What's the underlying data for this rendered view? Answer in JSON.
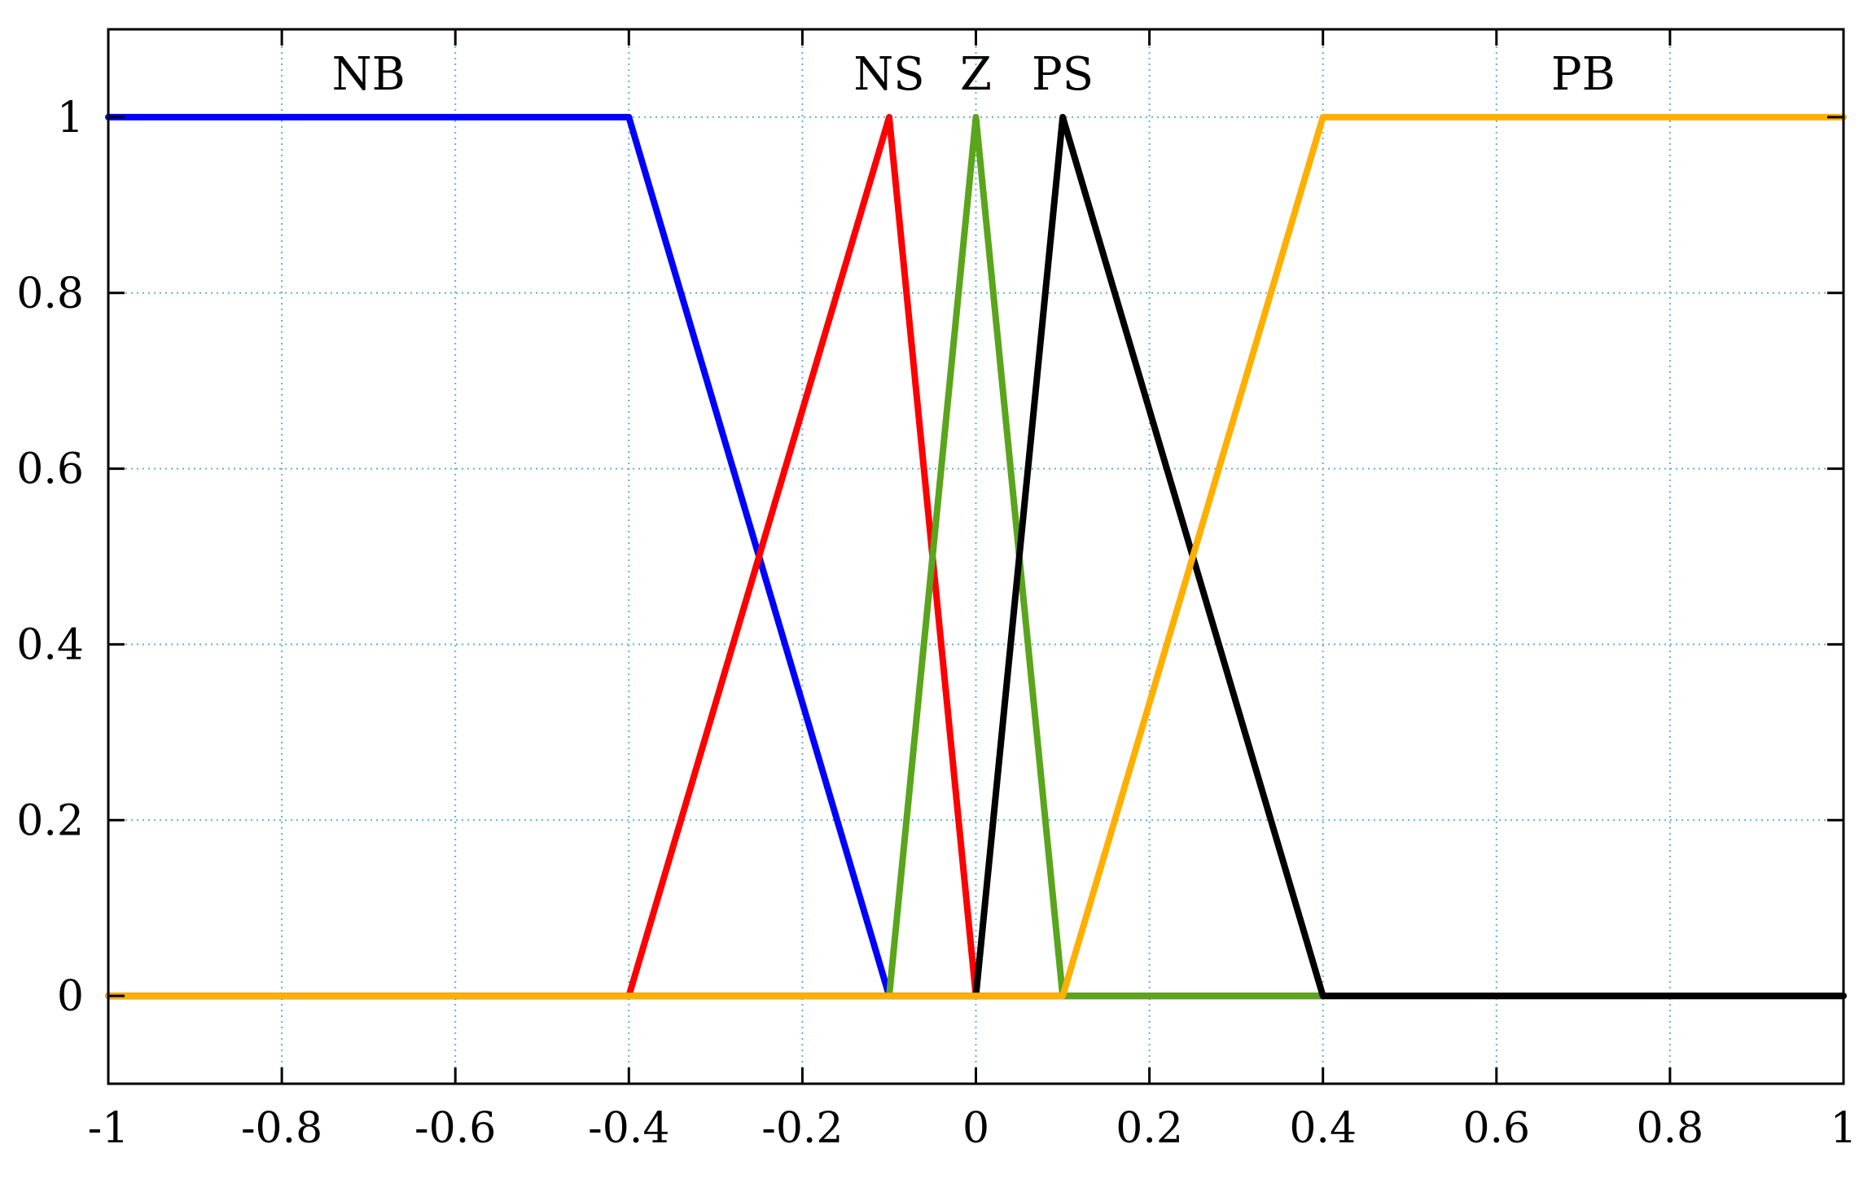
{
  "chart_data": {
    "type": "line",
    "title": "",
    "xlabel": "",
    "ylabel": "",
    "xlim": [
      -1,
      1
    ],
    "ylim": [
      -0.1,
      1.1
    ],
    "xticks": [
      -1,
      -0.8,
      -0.6,
      -0.4,
      -0.2,
      0,
      0.2,
      0.4,
      0.6,
      0.8,
      1
    ],
    "xtick_labels": [
      "-1",
      "-0.8",
      "-0.6",
      "-0.4",
      "-0.2",
      "0",
      "0.2",
      "0.4",
      "0.6",
      "0.8",
      "1"
    ],
    "yticks": [
      0,
      0.2,
      0.4,
      0.6,
      0.8,
      1
    ],
    "ytick_labels": [
      "0",
      "0.2",
      "0.4",
      "0.6",
      "0.8",
      "1"
    ],
    "grid": true,
    "grid_color": "#5fb0e0",
    "series": [
      {
        "name": "NB",
        "color": "#0000ff",
        "x": [
          -1,
          -0.4,
          -0.1,
          1
        ],
        "y": [
          1,
          1,
          0,
          0
        ]
      },
      {
        "name": "NS",
        "color": "#ff0000",
        "x": [
          -1,
          -0.4,
          -0.1,
          0,
          1
        ],
        "y": [
          0,
          0,
          1,
          0,
          0
        ]
      },
      {
        "name": "Z",
        "color": "#5aa51c",
        "x": [
          -1,
          -0.1,
          0,
          0.1,
          1
        ],
        "y": [
          0,
          0,
          1,
          0,
          0
        ]
      },
      {
        "name": "PS",
        "color": "#000000",
        "x": [
          -1,
          0,
          0.1,
          0.4,
          1
        ],
        "y": [
          0,
          0,
          1,
          0,
          0
        ]
      },
      {
        "name": "PB",
        "color": "#ffaf00",
        "x": [
          -1,
          0.1,
          0.4,
          1
        ],
        "y": [
          0,
          0,
          1,
          1
        ]
      }
    ],
    "annotations": [
      {
        "text": "NB",
        "x": -0.7,
        "y": 1.05
      },
      {
        "text": "NS",
        "x": -0.1,
        "y": 1.05
      },
      {
        "text": "Z",
        "x": 0,
        "y": 1.05
      },
      {
        "text": "PS",
        "x": 0.1,
        "y": 1.05
      },
      {
        "text": "PB",
        "x": 0.7,
        "y": 1.05
      }
    ]
  }
}
